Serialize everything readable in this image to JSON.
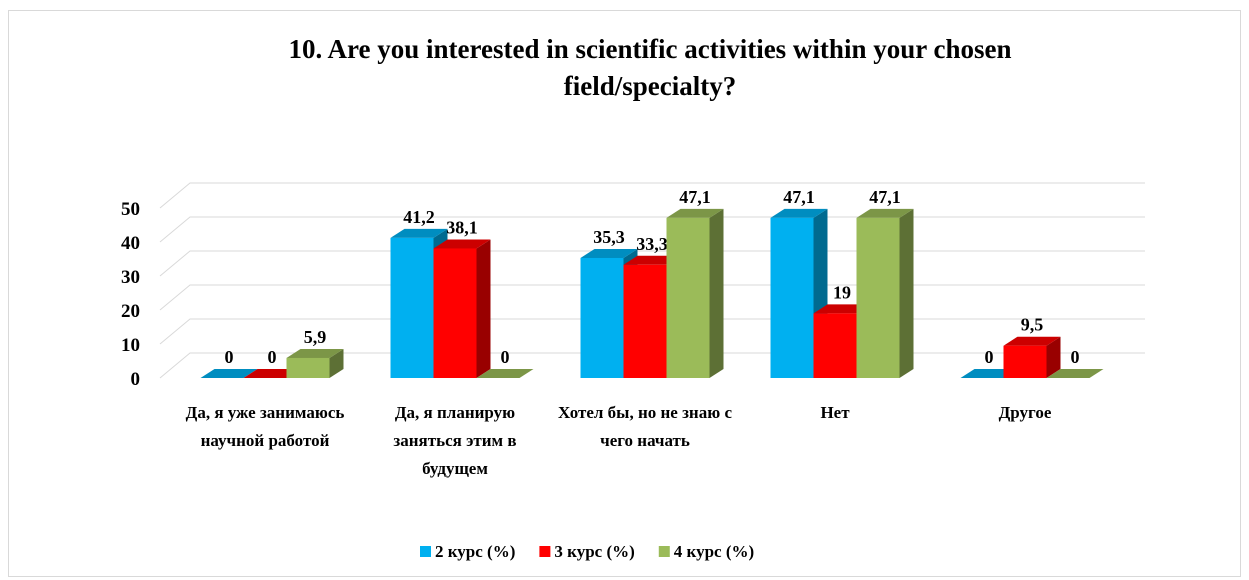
{
  "chart_data": {
    "type": "bar3d",
    "title": "10. Are you interested in scientific activities within your chosen field/specialty?",
    "categories": [
      "Да, я уже занимаюсь научной работой",
      "Да, я планирую заняться этим в будущем",
      "Хотел бы, но не знаю с чего начать",
      "Нет",
      "Другое"
    ],
    "series": [
      {
        "name": "2 курс (%)",
        "color": "#00b0f0",
        "values": [
          0,
          41.2,
          35.3,
          47.1,
          0
        ],
        "value_labels": [
          "0",
          "41,2",
          "35,3",
          "47,1",
          "0"
        ]
      },
      {
        "name": "3 курс (%)",
        "color": "#ff0000",
        "values": [
          0,
          38.1,
          33.3,
          19,
          9.5
        ],
        "value_labels": [
          "0",
          "38,1",
          "33,3",
          "19",
          "9,5"
        ]
      },
      {
        "name": "4 курс (%)",
        "color": "#9bbb59",
        "values": [
          5.9,
          0,
          47.1,
          47.1,
          0
        ],
        "value_labels": [
          "5,9",
          "0",
          "47,1",
          "47,1",
          "0"
        ]
      }
    ],
    "ylim": [
      0,
      50
    ],
    "yticks": [
      0,
      10,
      20,
      30,
      40,
      50
    ],
    "grid": true,
    "legend": "bottom"
  }
}
